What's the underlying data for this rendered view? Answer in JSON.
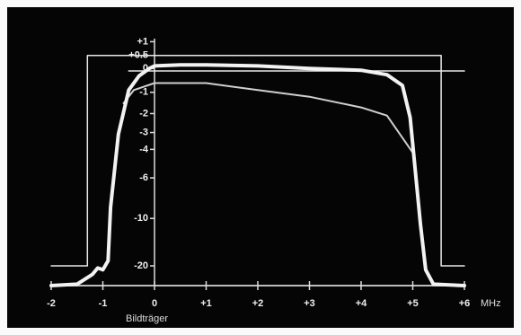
{
  "chart_data": {
    "type": "line",
    "x_label": "MHz",
    "annotation": "Bildträger",
    "y_scale": "amplitude",
    "xlim": [
      -2,
      6
    ],
    "xticks": [
      -2,
      -1,
      0,
      {
        "value": 1,
        "label": "+1"
      },
      {
        "value": 2,
        "label": "+2"
      },
      {
        "value": 3,
        "label": "+3"
      },
      {
        "value": 4,
        "label": "+4"
      },
      {
        "value": 5,
        "label": "+5"
      },
      {
        "value": 6,
        "label": "+6"
      }
    ],
    "ylim": [
      -40,
      2
    ],
    "yticks": [
      {
        "value": 1,
        "label": "+1"
      },
      {
        "value": 0.5,
        "label": "+0.5"
      },
      0,
      -1,
      -2,
      -3,
      -4,
      -6,
      -10,
      -20
    ],
    "series": [
      {
        "color": "#f2f2f2",
        "width": 4,
        "x": [
          -2,
          -1.5,
          -1.2,
          -1.1,
          -1.0,
          -0.9,
          -0.85,
          -0.7,
          -0.5,
          -0.3,
          -0.1,
          0,
          0.5,
          1,
          2,
          3,
          4,
          4.5,
          4.8,
          4.95,
          5.05,
          5.15,
          5.25,
          5.4,
          6
        ],
        "values": [
          -40,
          -35.7,
          -24.2,
          -20.9,
          -21.7,
          -18.2,
          -8.7,
          -3.1,
          -0.9,
          -0.3,
          0,
          0.1,
          0.14,
          0.14,
          0.1,
          0,
          -0.07,
          -0.25,
          -0.7,
          -2.2,
          -5.5,
          -10.8,
          -21.7,
          -35.7,
          -40
        ]
      },
      {
        "color": "#cfcfcf",
        "width": 2,
        "x": [
          -0.6,
          -0.4,
          0,
          1,
          2,
          3,
          4,
          4.5,
          5
        ],
        "values": [
          -1.5,
          -0.9,
          -0.6,
          -0.6,
          -0.9,
          -1.2,
          -1.7,
          -2.1,
          -4.2
        ]
      },
      {
        "color": "#e8e8e8",
        "width": 1.5,
        "x": [
          -2,
          -1.3,
          -1.3,
          5.55,
          5.55,
          6
        ],
        "values": [
          -20,
          -20,
          0.5,
          0.5,
          -20,
          -20
        ]
      },
      {
        "color": "#e8e8e8",
        "width": 1.5,
        "x": [
          -0.5,
          6
        ],
        "values": [
          -0.1,
          -0.1
        ]
      }
    ]
  }
}
